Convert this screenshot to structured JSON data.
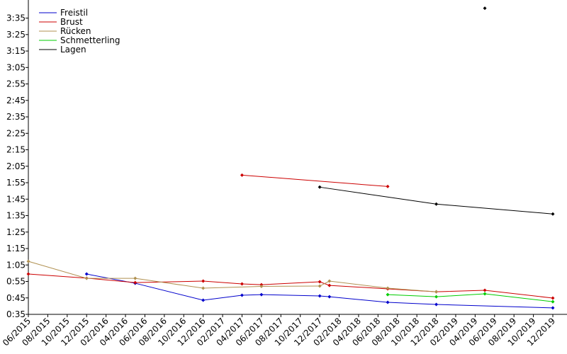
{
  "chart_data": {
    "type": "line",
    "xlim": [
      "2015-06",
      "2019-12"
    ],
    "ylim": [
      35,
      226
    ],
    "xticks": [
      {
        "value": "2015-06",
        "label": "06/2015"
      },
      {
        "value": "2015-08",
        "label": "08/2015"
      },
      {
        "value": "2015-10",
        "label": "10/2015"
      },
      {
        "value": "2015-12",
        "label": "12/2015"
      },
      {
        "value": "2016-02",
        "label": "02/2016"
      },
      {
        "value": "2016-04",
        "label": "04/2016"
      },
      {
        "value": "2016-06",
        "label": "06/2016"
      },
      {
        "value": "2016-08",
        "label": "08/2016"
      },
      {
        "value": "2016-10",
        "label": "10/2016"
      },
      {
        "value": "2016-12",
        "label": "12/2016"
      },
      {
        "value": "2017-02",
        "label": "02/2017"
      },
      {
        "value": "2017-04",
        "label": "04/2017"
      },
      {
        "value": "2017-06",
        "label": "06/2017"
      },
      {
        "value": "2017-08",
        "label": "08/2017"
      },
      {
        "value": "2017-10",
        "label": "10/2017"
      },
      {
        "value": "2017-12",
        "label": "12/2017"
      },
      {
        "value": "2018-02",
        "label": "02/2018"
      },
      {
        "value": "2018-04",
        "label": "04/2018"
      },
      {
        "value": "2018-06",
        "label": "06/2018"
      },
      {
        "value": "2018-08",
        "label": "08/2018"
      },
      {
        "value": "2018-10",
        "label": "10/2018"
      },
      {
        "value": "2018-12",
        "label": "12/2018"
      },
      {
        "value": "2019-02",
        "label": "02/2019"
      },
      {
        "value": "2019-04",
        "label": "04/2019"
      },
      {
        "value": "2019-06",
        "label": "06/2019"
      },
      {
        "value": "2019-08",
        "label": "08/2019"
      },
      {
        "value": "2019-10",
        "label": "10/2019"
      },
      {
        "value": "2019-12",
        "label": "12/2019"
      }
    ],
    "yticks": [
      {
        "value": 35,
        "label": "0:35"
      },
      {
        "value": 45,
        "label": "0:45"
      },
      {
        "value": 55,
        "label": "0:55"
      },
      {
        "value": 65,
        "label": "1:05"
      },
      {
        "value": 75,
        "label": "1:15"
      },
      {
        "value": 85,
        "label": "1:25"
      },
      {
        "value": 95,
        "label": "1:35"
      },
      {
        "value": 105,
        "label": "1:45"
      },
      {
        "value": 115,
        "label": "1:55"
      },
      {
        "value": 125,
        "label": "2:05"
      },
      {
        "value": 135,
        "label": "2:15"
      },
      {
        "value": 145,
        "label": "2:25"
      },
      {
        "value": 155,
        "label": "2:35"
      },
      {
        "value": 165,
        "label": "2:45"
      },
      {
        "value": 175,
        "label": "2:55"
      },
      {
        "value": 185,
        "label": "3:05"
      },
      {
        "value": 195,
        "label": "3:15"
      },
      {
        "value": 205,
        "label": "3:25"
      },
      {
        "value": 215,
        "label": "3:35"
      }
    ],
    "legend": "upper left",
    "series": [
      {
        "name": "Freistil",
        "color": "#0000cc",
        "x": [
          "2015-12",
          "2016-05",
          "2016-12",
          "2017-04",
          "2017-06",
          "2017-12",
          "2018-01",
          "2018-07",
          "2018-12",
          "2019-12"
        ],
        "values": [
          59.5,
          53.9,
          43.6,
          46.6,
          47,
          46.2,
          45.7,
          42.3,
          41,
          38.9
        ]
      },
      {
        "name": "Brust",
        "color": "#cc0000",
        "x": [
          "2015-06",
          "2015-12",
          "2016-05",
          "2016-12",
          "2017-04",
          "2017-06",
          "2017-12",
          "2018-01",
          "2018-07",
          "2018-12",
          "2019-05",
          "2019-12"
        ],
        "values": [
          59.5,
          57,
          54.3,
          55.2,
          53.5,
          53,
          54.8,
          52.6,
          50.5,
          48.7,
          49.6,
          44.9
        ]
      },
      {
        "name": "Rücken",
        "color": "#b09050",
        "x": [
          "2015-06",
          "2015-12",
          "2016-05",
          "2016-12",
          "2017-06",
          "2017-12",
          "2018-01",
          "2018-07",
          "2018-12"
        ],
        "values": [
          67.2,
          56.9,
          56.9,
          50.9,
          52,
          52.2,
          55.2,
          50.9,
          48.7
        ]
      },
      {
        "name": "Schmetterling",
        "color": "#00cc00",
        "x": [
          "2018-07",
          "2018-12",
          "2019-05",
          "2019-12"
        ],
        "values": [
          47,
          45.7,
          47.5,
          42.7
        ]
      },
      {
        "name": "Lagen",
        "color": "#000000",
        "x": [
          "2017-12",
          "2018-12",
          "2019-12"
        ],
        "values": [
          112.3,
          102,
          96
        ]
      },
      {
        "name": "Brust",
        "color": "#cc0000",
        "x": [
          "2017-04",
          "2018-07"
        ],
        "values": [
          119.6,
          112.7
        ]
      },
      {
        "name": "Lagen",
        "color": "#000000",
        "x": [
          "2019-05"
        ],
        "values": [
          221
        ]
      }
    ]
  }
}
